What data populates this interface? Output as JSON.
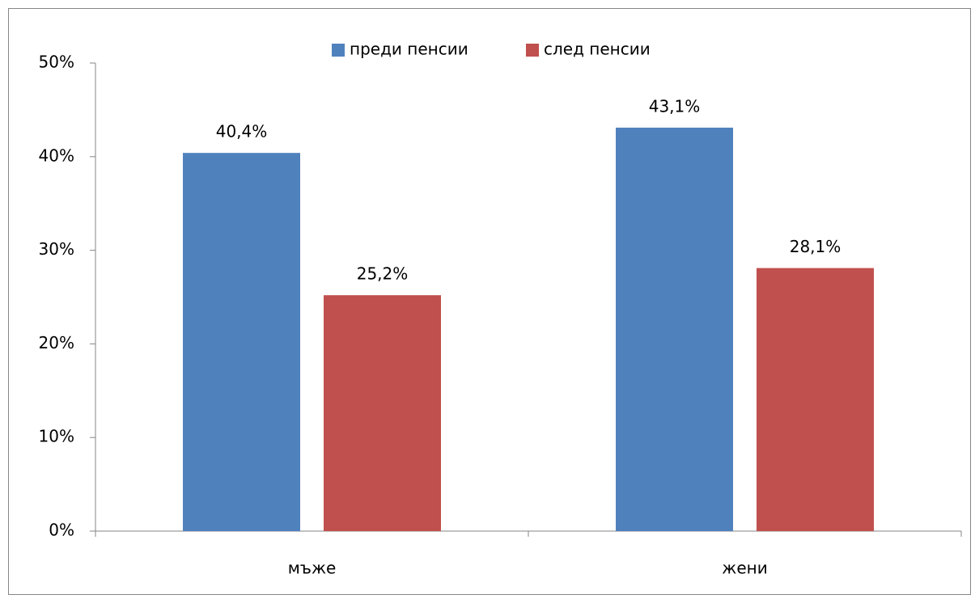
{
  "chart_data": {
    "type": "bar",
    "categories": [
      "мъже",
      "жени"
    ],
    "series": [
      {
        "name": "преди пенсии",
        "color": "#4f81bd",
        "values": [
          40.4,
          43.1
        ],
        "value_labels": [
          "40,4%",
          "43,1%"
        ]
      },
      {
        "name": "след пенсии",
        "color": "#c0504d",
        "values": [
          25.2,
          28.1
        ],
        "value_labels": [
          "25,2%",
          "28,1%"
        ]
      }
    ],
    "ylim": [
      0,
      50
    ],
    "yticks": [
      {
        "value": 0,
        "label": "0%"
      },
      {
        "value": 10,
        "label": "10%"
      },
      {
        "value": 20,
        "label": "20%"
      },
      {
        "value": 30,
        "label": "30%"
      },
      {
        "value": 40,
        "label": "40%"
      },
      {
        "value": 50,
        "label": "50%"
      }
    ],
    "legend": "top"
  }
}
